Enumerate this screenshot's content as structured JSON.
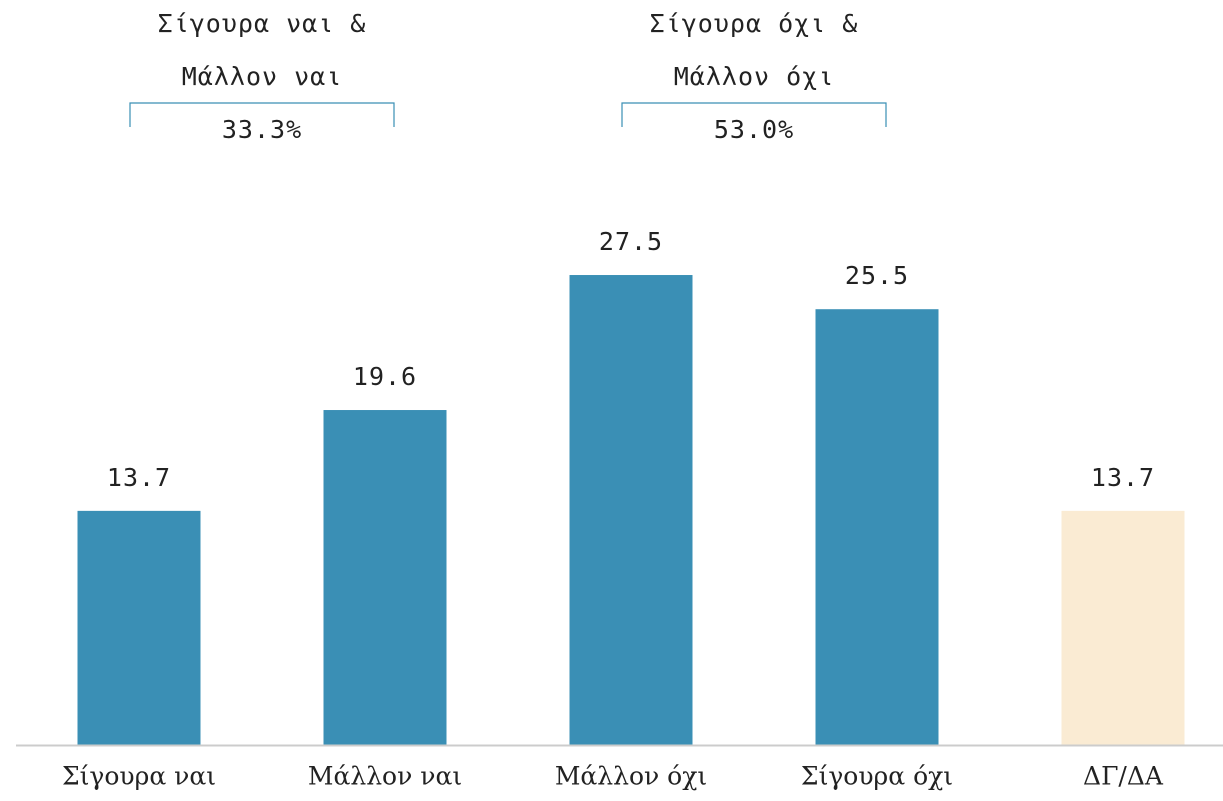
{
  "chart_data": {
    "type": "bar",
    "categories": [
      "Σίγουρα ναι",
      "Μάλλον ναι",
      "Μάλλον όχι",
      "Σίγουρα όχι",
      "ΔΓ/ΔΑ"
    ],
    "values": [
      13.7,
      19.6,
      27.5,
      25.5,
      13.7
    ],
    "colors": [
      "#3a8fb5",
      "#3a8fb5",
      "#3a8fb5",
      "#3a8fb5",
      "#faebd3"
    ],
    "ylim": [
      0,
      30
    ],
    "annotations": [
      {
        "lines": [
          "Σίγουρα ναι &",
          "Μάλλον ναι"
        ],
        "value": 33.3,
        "value_label": "33.3%"
      },
      {
        "lines": [
          "Σίγουρα όχι &",
          "Μάλλον όχι"
        ],
        "value": 53.0,
        "value_label": "53.0%"
      }
    ]
  }
}
